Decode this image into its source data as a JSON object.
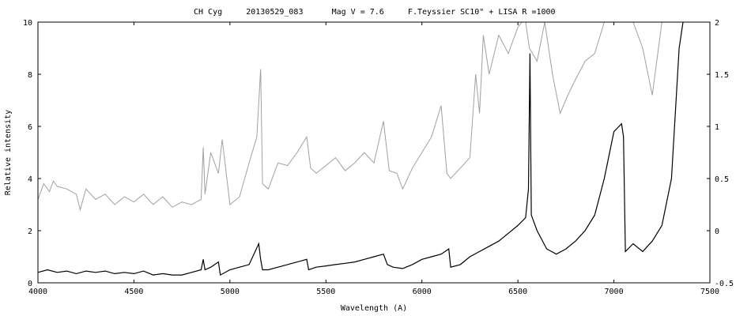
{
  "chart_data": {
    "type": "line",
    "title": "CH Cyg     20130529_083      Mag V = 7.6     F.Teyssier SC10\" + LISA R =1000",
    "xlabel": "Wavelength (A)",
    "ylabel": "Relative intensity",
    "xlim": [
      4000,
      7500
    ],
    "ylim": [
      0,
      10
    ],
    "y2lim": [
      -0.5,
      2
    ],
    "x_ticks": [
      4000,
      4500,
      5000,
      5500,
      6000,
      6500,
      7000,
      7500
    ],
    "y_ticks": [
      0,
      2,
      4,
      6,
      8,
      10
    ],
    "y2_ticks": [
      -0.5,
      0,
      0.5,
      1,
      1.5,
      2
    ],
    "grid": false,
    "series": [
      {
        "axis": "left",
        "color": "#a0a0a0",
        "x": [
          4000,
          4030,
          4060,
          4080,
          4100,
          4150,
          4200,
          4220,
          4250,
          4300,
          4350,
          4400,
          4450,
          4500,
          4550,
          4600,
          4650,
          4700,
          4750,
          4800,
          4850,
          4861,
          4870,
          4900,
          4940,
          4960,
          5000,
          5050,
          5100,
          5140,
          5160,
          5170,
          5200,
          5250,
          5300,
          5350,
          5400,
          5420,
          5450,
          5500,
          5550,
          5600,
          5650,
          5700,
          5750,
          5800,
          5830,
          5870,
          5900,
          5950,
          6000,
          6050,
          6100,
          6130,
          6150,
          6200,
          6250,
          6280,
          6300,
          6320,
          6350,
          6400,
          6450,
          6500,
          6520,
          6540,
          6560,
          6600,
          6640,
          6680,
          6720,
          6760,
          6800,
          6850,
          6900,
          6950,
          7000,
          7050,
          7100,
          7150,
          7200,
          7250,
          7300,
          7350,
          7370
        ],
        "values": [
          3.2,
          3.8,
          3.5,
          3.9,
          3.7,
          3.6,
          3.4,
          2.8,
          3.6,
          3.2,
          3.4,
          3.0,
          3.3,
          3.1,
          3.4,
          3.0,
          3.3,
          2.9,
          3.1,
          3.0,
          3.2,
          5.2,
          3.4,
          5.0,
          4.2,
          5.5,
          3.0,
          3.3,
          4.6,
          5.6,
          8.2,
          3.8,
          3.6,
          4.6,
          4.5,
          5.0,
          5.6,
          4.4,
          4.2,
          4.5,
          4.8,
          4.3,
          4.6,
          5.0,
          4.6,
          6.2,
          4.3,
          4.2,
          3.6,
          4.4,
          5.0,
          5.6,
          6.8,
          4.2,
          4.0,
          4.4,
          4.8,
          8.0,
          6.5,
          9.5,
          8.0,
          9.5,
          8.8,
          9.8,
          10.5,
          10.5,
          9.0,
          8.5,
          10.5,
          8.0,
          6.5,
          7.2,
          7.8,
          8.5,
          8.8,
          10.5,
          10.5,
          10.5,
          10.5,
          9.0,
          7.2,
          10.5,
          10.5,
          10.5,
          10.5
        ]
      },
      {
        "axis": "left",
        "color": "#000000",
        "x": [
          4000,
          4050,
          4100,
          4150,
          4200,
          4250,
          4300,
          4350,
          4400,
          4450,
          4500,
          4550,
          4600,
          4650,
          4700,
          4750,
          4800,
          4850,
          4861,
          4870,
          4900,
          4940,
          4950,
          5000,
          5050,
          5100,
          5150,
          5160,
          5170,
          5200,
          5250,
          5300,
          5350,
          5400,
          5410,
          5450,
          5500,
          5550,
          5600,
          5650,
          5700,
          5750,
          5800,
          5820,
          5850,
          5900,
          5950,
          6000,
          6050,
          6100,
          6140,
          6150,
          6200,
          6250,
          6300,
          6350,
          6400,
          6450,
          6500,
          6540,
          6555,
          6563,
          6570,
          6600,
          6650,
          6700,
          6750,
          6800,
          6850,
          6900,
          6950,
          7000,
          7040,
          7050,
          7060,
          7100,
          7150,
          7200,
          7250,
          7300,
          7340,
          7360
        ],
        "values": [
          0.4,
          0.5,
          0.4,
          0.45,
          0.35,
          0.45,
          0.4,
          0.45,
          0.35,
          0.4,
          0.35,
          0.45,
          0.3,
          0.35,
          0.3,
          0.3,
          0.4,
          0.5,
          0.9,
          0.5,
          0.6,
          0.8,
          0.3,
          0.5,
          0.6,
          0.7,
          1.5,
          0.9,
          0.5,
          0.5,
          0.6,
          0.7,
          0.8,
          0.9,
          0.5,
          0.6,
          0.65,
          0.7,
          0.75,
          0.8,
          0.9,
          1.0,
          1.1,
          0.7,
          0.6,
          0.55,
          0.7,
          0.9,
          1.0,
          1.1,
          1.3,
          0.6,
          0.7,
          1.0,
          1.2,
          1.4,
          1.6,
          1.9,
          2.2,
          2.5,
          3.6,
          8.8,
          2.6,
          2.0,
          1.3,
          1.1,
          1.3,
          1.6,
          2.0,
          2.6,
          4.0,
          5.8,
          6.1,
          5.6,
          1.2,
          1.5,
          1.2,
          1.6,
          2.2,
          4.0,
          9.0,
          10.0
        ]
      }
    ]
  }
}
